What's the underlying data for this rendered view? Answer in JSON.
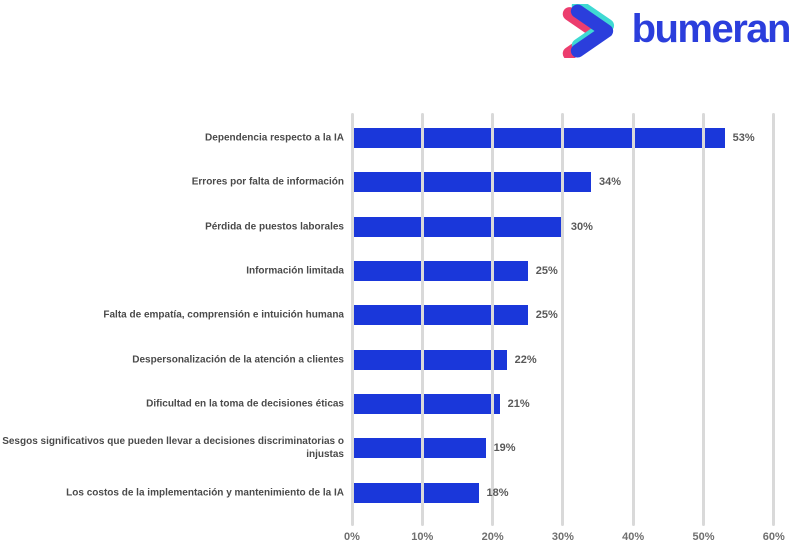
{
  "logo": {
    "brand": "bumeran",
    "colors": {
      "blue": "#2B3EDC",
      "cyan": "#3FD9D3",
      "pink": "#EC3D6E"
    }
  },
  "chart_data": {
    "type": "bar",
    "orientation": "horizontal",
    "title": "",
    "categories": [
      "Dependencia respecto a la IA",
      "Errores por falta de información",
      "Pérdida de puestos laborales",
      "Información limitada",
      "Falta de empatía, comprensión e intuición humana",
      "Despersonalización de la atención a clientes",
      "Dificultad en la toma de decisiones éticas",
      "Sesgos significativos que pueden llevar a decisiones discriminatorias o injustas",
      "Los costos de la implementación y mantenimiento de la IA"
    ],
    "values": [
      53,
      34,
      30,
      25,
      25,
      22,
      21,
      19,
      18
    ],
    "value_labels": [
      "53%",
      "34%",
      "30%",
      "25%",
      "25%",
      "22%",
      "21%",
      "19%",
      "18%"
    ],
    "x_ticks": [
      "0%",
      "10%",
      "20%",
      "30%",
      "40%",
      "50%",
      "60%"
    ],
    "x_tick_values": [
      0,
      10,
      20,
      30,
      40,
      50,
      60
    ],
    "xlim": [
      0,
      60
    ],
    "grid": true,
    "legend": false,
    "bar_color": "#1A37DA",
    "gridline_color": "#D9D9D9"
  }
}
